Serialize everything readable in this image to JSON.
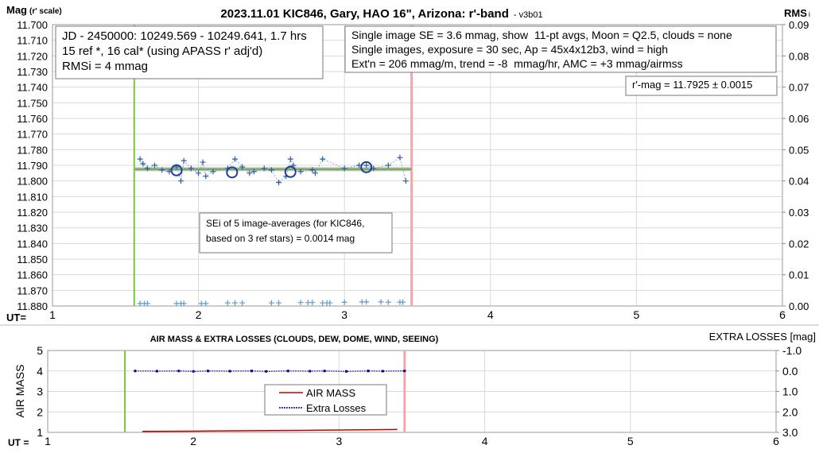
{
  "chart_data": [
    {
      "type": "scatter",
      "title": "2023.11.01 KIC846, Gary, HAO 16\", Arizona: r'-band",
      "subtitle": "- v3b01",
      "y_label": "Mag",
      "y_label_suffix": "(r' scale)",
      "y2_label": "RMS",
      "y2_label_suffix": "i",
      "x_label": "UT=",
      "xlim": [
        1,
        6
      ],
      "xticks": [
        1,
        2,
        3,
        4,
        5,
        6
      ],
      "ylim": [
        11.7,
        11.88
      ],
      "y_inverted": true,
      "yticks": [
        {
          "value": 11.7,
          "label": "11.700"
        },
        {
          "value": 11.71,
          "label": "11.710"
        },
        {
          "value": 11.72,
          "label": "11.720"
        },
        {
          "value": 11.73,
          "label": "11.730"
        },
        {
          "value": 11.74,
          "label": "11.740"
        },
        {
          "value": 11.75,
          "label": "11.750"
        },
        {
          "value": 11.76,
          "label": "11.760"
        },
        {
          "value": 11.77,
          "label": "11.770"
        },
        {
          "value": 11.78,
          "label": "11.780"
        },
        {
          "value": 11.79,
          "label": "11.790"
        },
        {
          "value": 11.8,
          "label": "11.800"
        },
        {
          "value": 11.81,
          "label": "11.810"
        },
        {
          "value": 11.82,
          "label": "11.820"
        },
        {
          "value": 11.83,
          "label": "11.830"
        },
        {
          "value": 11.84,
          "label": "11.840"
        },
        {
          "value": 11.85,
          "label": "11.850"
        },
        {
          "value": 11.86,
          "label": "11.860"
        },
        {
          "value": 11.87,
          "label": "11.870"
        },
        {
          "value": 11.88,
          "label": "11.880"
        }
      ],
      "y2lim": [
        0,
        0.09
      ],
      "y2ticks": [
        {
          "value": 0,
          "label": "0.00"
        },
        {
          "value": 0.01,
          "label": "0.01"
        },
        {
          "value": 0.02,
          "label": "0.02"
        },
        {
          "value": 0.03,
          "label": "0.03"
        },
        {
          "value": 0.04,
          "label": "0.04"
        },
        {
          "value": 0.05,
          "label": "0.05"
        },
        {
          "value": 0.06,
          "label": "0.06"
        },
        {
          "value": 0.07,
          "label": "0.07"
        },
        {
          "value": 0.08,
          "label": "0.08"
        },
        {
          "value": 0.09,
          "label": "0.09"
        }
      ],
      "grid": true,
      "markers": [
        {
          "x": 1.56,
          "color": "#7dc242"
        },
        {
          "x": 3.46,
          "color": "#f4a6a6"
        }
      ],
      "fit_value": 11.7925,
      "series": [
        {
          "style": "cross",
          "color": "#2f5f9e",
          "x": [
            1.6,
            1.62,
            1.65,
            1.7,
            1.75,
            1.8,
            1.85,
            1.88,
            1.9,
            1.95,
            2.0,
            2.03,
            2.05,
            2.1,
            2.2,
            2.25,
            2.3,
            2.35,
            2.38,
            2.45,
            2.5,
            2.55,
            2.6,
            2.63,
            2.65,
            2.7,
            2.78,
            2.8,
            2.85,
            3.0,
            3.1,
            3.15,
            3.2,
            3.3,
            3.38,
            3.42
          ],
          "values": [
            11.786,
            11.789,
            11.792,
            11.79,
            11.793,
            11.794,
            11.791,
            11.8,
            11.787,
            11.792,
            11.795,
            11.788,
            11.797,
            11.794,
            11.792,
            11.786,
            11.791,
            11.795,
            11.794,
            11.792,
            11.793,
            11.801,
            11.797,
            11.786,
            11.79,
            11.794,
            11.793,
            11.795,
            11.786,
            11.792,
            11.79,
            11.79,
            11.792,
            11.79,
            11.785,
            11.8
          ]
        },
        {
          "style": "circle",
          "color": "#1f3c99",
          "x": [
            1.85,
            2.23,
            2.63,
            3.15
          ],
          "values": [
            11.7932,
            11.7945,
            11.7942,
            11.7912
          ]
        },
        {
          "style": "cross",
          "axis": "y2",
          "color": "#5b9bd5",
          "x": [
            1.6,
            1.63,
            1.65,
            1.85,
            1.88,
            1.9,
            2.02,
            2.05,
            2.2,
            2.25,
            2.3,
            2.5,
            2.55,
            2.7,
            2.75,
            2.78,
            2.85,
            2.88,
            2.9,
            3.0,
            3.12,
            3.15,
            3.25,
            3.3,
            3.38,
            3.4
          ],
          "values": [
            0.0008,
            0.0008,
            0.0008,
            0.0008,
            0.0008,
            0.0008,
            0.0008,
            0.0008,
            0.001,
            0.001,
            0.001,
            0.001,
            0.001,
            0.0011,
            0.0011,
            0.0011,
            0.001,
            0.001,
            0.001,
            0.0012,
            0.0013,
            0.0013,
            0.0013,
            0.0012,
            0.0012,
            0.0012
          ]
        }
      ],
      "annotations": [
        {
          "lines": [
            "JD - 2450000: 10249.569 - 10249.641, 1.7 hrs",
            "15 ref *, 16 cal* (using APASS r' adj'd)",
            "RMSi = 4 mmag"
          ]
        },
        {
          "lines": [
            "Single image SE = 3.6 mmag, show  11-pt avgs, Moon = Q2.5, clouds = none",
            "Single images, exposure = 30 sec, Ap = 45x4x12b3, wind = high",
            "Ext'n = 206 mmag/m, trend = -8  mmag/hr, AMC = +3 mmag/airmss"
          ]
        },
        {
          "lines": [
            "r'-mag = 11.7925 ± 0.0015"
          ]
        },
        {
          "lines": [
            "SEi of 5 image-averages (for KIC846,",
            "based on 3 ref stars) = 0.0014 mag"
          ]
        }
      ]
    },
    {
      "type": "line",
      "title": "AIR MASS & EXTRA LOSSES (CLOUDS, DEW, DOME, WIND, SEEING)",
      "y_label": "AIR MASS",
      "y2_label": "EXTRA LOSSES [mag]",
      "x_label": "UT =",
      "xlim": [
        1,
        6
      ],
      "xticks": [
        1,
        2,
        3,
        4,
        5,
        6
      ],
      "ylim": [
        1,
        5
      ],
      "yticks": [
        1,
        2,
        3,
        4,
        5
      ],
      "y2lim": [
        -1,
        3
      ],
      "y2_inverted": true,
      "y2ticks": [
        {
          "value": -1,
          "label": "-1.0"
        },
        {
          "value": 0,
          "label": "0.0"
        },
        {
          "value": 1,
          "label": "1.0"
        },
        {
          "value": 2,
          "label": "2.0"
        },
        {
          "value": 3,
          "label": "3.0"
        }
      ],
      "grid": true,
      "legend": "center",
      "markers": [
        {
          "x": 1.53,
          "color": "#7dc242"
        },
        {
          "x": 3.45,
          "color": "#f4a6a6"
        }
      ],
      "series": [
        {
          "name": "AIR MASS",
          "color": "#c00000",
          "x": [
            1.65,
            2.0,
            2.4,
            2.8,
            3.1,
            3.4
          ],
          "values": [
            1.05,
            1.06,
            1.08,
            1.1,
            1.12,
            1.14
          ]
        },
        {
          "name": "Extra Losses",
          "axis": "y2",
          "color": "#00008b",
          "x": [
            1.6,
            1.75,
            1.9,
            2.0,
            2.1,
            2.25,
            2.4,
            2.5,
            2.65,
            2.8,
            2.9,
            3.05,
            3.2,
            3.3,
            3.45
          ],
          "values": [
            0,
            0.01,
            0,
            0.02,
            0,
            0.01,
            0,
            0.02,
            0,
            0.01,
            0,
            0.02,
            0,
            0.01,
            0
          ]
        }
      ]
    }
  ]
}
